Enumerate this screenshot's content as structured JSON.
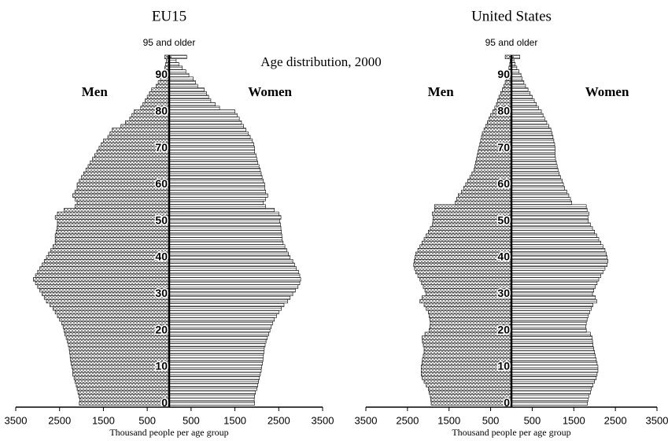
{
  "title": "Age distribution, 2000",
  "chart_data": [
    {
      "type": "pyramid",
      "title": "EU15",
      "xlabel": "Thousand people per age group",
      "xlim": [
        -3500,
        3500
      ],
      "xticks": [
        {
          "value": -3500,
          "label": "3500"
        },
        {
          "value": -2500,
          "label": "2500"
        },
        {
          "value": -1500,
          "label": "1500"
        },
        {
          "value": -500,
          "label": "500"
        },
        500,
        1500,
        2500,
        3500
      ],
      "ylim": [
        0,
        96
      ],
      "yticks": [
        0,
        10,
        20,
        30,
        40,
        50,
        60,
        70,
        80,
        90,
        {
          "value": 95,
          "label": "95 and older"
        }
      ],
      "y": [
        0,
        1,
        2,
        3,
        4,
        5,
        6,
        7,
        8,
        9,
        10,
        11,
        12,
        13,
        14,
        15,
        16,
        17,
        18,
        19,
        20,
        21,
        22,
        23,
        24,
        25,
        26,
        27,
        28,
        29,
        30,
        31,
        32,
        33,
        34,
        35,
        36,
        37,
        38,
        39,
        40,
        41,
        42,
        43,
        44,
        45,
        46,
        47,
        48,
        49,
        50,
        51,
        52,
        53,
        54,
        55,
        56,
        57,
        58,
        59,
        60,
        61,
        62,
        63,
        64,
        65,
        66,
        67,
        68,
        69,
        70,
        71,
        72,
        73,
        74,
        75,
        76,
        77,
        78,
        79,
        80,
        81,
        82,
        83,
        84,
        85,
        86,
        87,
        88,
        89,
        90,
        91,
        92,
        93,
        94,
        95
      ],
      "series": [
        {
          "name": "Men",
          "color": "#555555",
          "values": [
            -2050,
            -2040,
            -2060,
            -2080,
            -2100,
            -2120,
            -2150,
            -2170,
            -2200,
            -2200,
            -2220,
            -2240,
            -2250,
            -2260,
            -2270,
            -2280,
            -2300,
            -2320,
            -2350,
            -2380,
            -2400,
            -2420,
            -2450,
            -2500,
            -2550,
            -2600,
            -2650,
            -2720,
            -2800,
            -2850,
            -2900,
            -2950,
            -3000,
            -3050,
            -3100,
            -3050,
            -3000,
            -2950,
            -2900,
            -2850,
            -2800,
            -2750,
            -2700,
            -2650,
            -2600,
            -2600,
            -2600,
            -2580,
            -2560,
            -2550,
            -2550,
            -2600,
            -2550,
            -2400,
            -2150,
            -2100,
            -2150,
            -2200,
            -2150,
            -2100,
            -2100,
            -2050,
            -2000,
            -1950,
            -1900,
            -1850,
            -1800,
            -1750,
            -1700,
            -1650,
            -1600,
            -1550,
            -1500,
            -1400,
            -1350,
            -1300,
            -1100,
            -1000,
            -900,
            -850,
            -800,
            -650,
            -600,
            -550,
            -500,
            -450,
            -400,
            -300,
            -250,
            -200,
            -150,
            -120,
            -100,
            -80,
            -60,
            -100
          ]
        },
        {
          "name": "Women",
          "color": "#555555",
          "values": [
            1950,
            1940,
            1950,
            1970,
            2000,
            2020,
            2040,
            2060,
            2080,
            2100,
            2110,
            2130,
            2140,
            2150,
            2160,
            2170,
            2190,
            2210,
            2240,
            2270,
            2300,
            2330,
            2360,
            2400,
            2450,
            2500,
            2560,
            2620,
            2700,
            2760,
            2820,
            2880,
            2940,
            2980,
            3000,
            2980,
            2950,
            2900,
            2860,
            2820,
            2760,
            2720,
            2680,
            2640,
            2600,
            2580,
            2570,
            2560,
            2550,
            2540,
            2520,
            2550,
            2500,
            2400,
            2200,
            2150,
            2200,
            2250,
            2200,
            2180,
            2180,
            2150,
            2120,
            2100,
            2080,
            2050,
            2020,
            2000,
            1980,
            1950,
            1950,
            1930,
            1900,
            1850,
            1800,
            1750,
            1700,
            1650,
            1600,
            1550,
            1500,
            1150,
            1050,
            950,
            900,
            850,
            800,
            650,
            600,
            550,
            450,
            380,
            300,
            220,
            160,
            400
          ]
        }
      ]
    },
    {
      "type": "pyramid",
      "title": "United States",
      "xlabel": "Thousand people per age group",
      "xlim": [
        -3500,
        3500
      ],
      "xticks": [
        {
          "value": -3500,
          "label": "3500"
        },
        {
          "value": -2500,
          "label": "2500"
        },
        {
          "value": -1500,
          "label": "1500"
        },
        {
          "value": -500,
          "label": "500"
        },
        500,
        1500,
        2500,
        3500
      ],
      "ylim": [
        0,
        96
      ],
      "yticks": [
        0,
        10,
        20,
        30,
        40,
        50,
        60,
        70,
        80,
        90,
        {
          "value": 95,
          "label": "95 and older"
        }
      ],
      "y": [
        0,
        1,
        2,
        3,
        4,
        5,
        6,
        7,
        8,
        9,
        10,
        11,
        12,
        13,
        14,
        15,
        16,
        17,
        18,
        19,
        20,
        21,
        22,
        23,
        24,
        25,
        26,
        27,
        28,
        29,
        30,
        31,
        32,
        33,
        34,
        35,
        36,
        37,
        38,
        39,
        40,
        41,
        42,
        43,
        44,
        45,
        46,
        47,
        48,
        49,
        50,
        51,
        52,
        53,
        54,
        55,
        56,
        57,
        58,
        59,
        60,
        61,
        62,
        63,
        64,
        65,
        66,
        67,
        68,
        69,
        70,
        71,
        72,
        73,
        74,
        75,
        76,
        77,
        78,
        79,
        80,
        81,
        82,
        83,
        84,
        85,
        86,
        87,
        88,
        89,
        90,
        91,
        92,
        93,
        94,
        95
      ],
      "series": [
        {
          "name": "Men",
          "color": "#555555",
          "values": [
            -1930,
            -1940,
            -1950,
            -1980,
            -2000,
            -2050,
            -2100,
            -2150,
            -2170,
            -2170,
            -2170,
            -2150,
            -2140,
            -2120,
            -2100,
            -2100,
            -2120,
            -2140,
            -2150,
            -2080,
            -1980,
            -1960,
            -1950,
            -1960,
            -1980,
            -2000,
            -2050,
            -2100,
            -2200,
            -2150,
            -2050,
            -2080,
            -2120,
            -2160,
            -2200,
            -2250,
            -2300,
            -2330,
            -2350,
            -2340,
            -2320,
            -2300,
            -2250,
            -2200,
            -2150,
            -2100,
            -2050,
            -2000,
            -1950,
            -1900,
            -1890,
            -1880,
            -1900,
            -1850,
            -1850,
            -1350,
            -1320,
            -1280,
            -1200,
            -1150,
            -1100,
            -1050,
            -1000,
            -950,
            -900,
            -880,
            -860,
            -840,
            -820,
            -800,
            -780,
            -760,
            -740,
            -720,
            -700,
            -660,
            -620,
            -580,
            -540,
            -500,
            -450,
            -400,
            -360,
            -330,
            -300,
            -260,
            -220,
            -180,
            -150,
            -120,
            -100,
            -80,
            -60,
            -40,
            -30,
            -150
          ]
        },
        {
          "name": "Women",
          "color": "#555555",
          "values": [
            1830,
            1840,
            1860,
            1900,
            1920,
            1960,
            2000,
            2040,
            2060,
            2080,
            2080,
            2060,
            2040,
            2020,
            2000,
            1980,
            1960,
            1950,
            1940,
            1900,
            1800,
            1790,
            1800,
            1820,
            1850,
            1880,
            1920,
            1960,
            2050,
            2020,
            1950,
            1980,
            2020,
            2060,
            2100,
            2150,
            2200,
            2250,
            2300,
            2320,
            2300,
            2280,
            2250,
            2200,
            2150,
            2100,
            2050,
            2000,
            1950,
            1900,
            1850,
            1840,
            1860,
            1820,
            1800,
            1450,
            1420,
            1380,
            1330,
            1280,
            1250,
            1220,
            1180,
            1150,
            1120,
            1100,
            1080,
            1060,
            1050,
            1050,
            1050,
            1040,
            1020,
            1000,
            980,
            950,
            900,
            850,
            800,
            760,
            720,
            650,
            600,
            550,
            500,
            450,
            400,
            340,
            300,
            260,
            230,
            180,
            130,
            90,
            60,
            200
          ]
        }
      ]
    }
  ]
}
